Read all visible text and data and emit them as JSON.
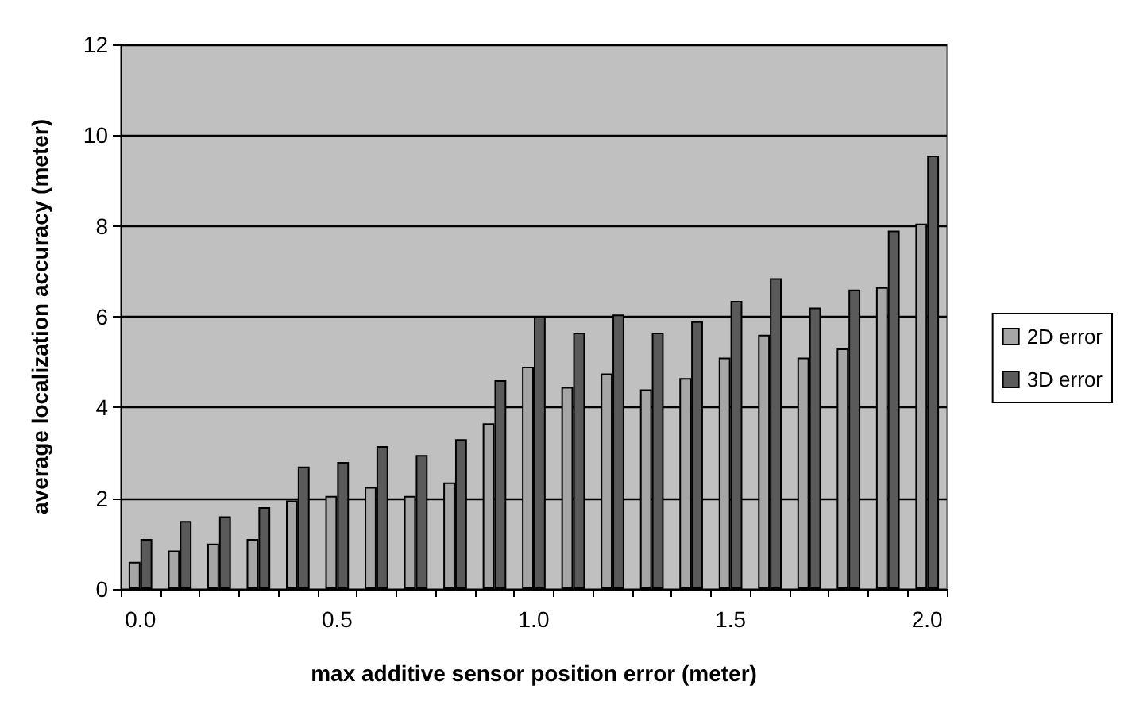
{
  "chart_data": {
    "type": "bar",
    "xlabel": "max additive sensor position error (meter)",
    "ylabel": "average localization accuracy (meter)",
    "categories": [
      "0.0",
      null,
      null,
      null,
      null,
      "0.5",
      null,
      null,
      null,
      null,
      "1.0",
      null,
      null,
      null,
      null,
      "1.5",
      null,
      null,
      null,
      null,
      "2.0"
    ],
    "series": [
      {
        "name": "2D error",
        "color": "#a6a6a6",
        "values": [
          0.6,
          0.85,
          1.0,
          1.1,
          1.95,
          2.05,
          2.25,
          2.05,
          2.35,
          3.65,
          4.9,
          4.45,
          4.75,
          4.4,
          4.65,
          5.1,
          5.6,
          5.1,
          5.3,
          6.65,
          8.05
        ]
      },
      {
        "name": "3D error",
        "color": "#5a5a5a",
        "values": [
          1.1,
          1.5,
          1.6,
          1.8,
          2.7,
          2.8,
          3.15,
          2.95,
          3.3,
          4.6,
          6.0,
          5.65,
          6.05,
          5.65,
          5.9,
          6.35,
          6.85,
          6.2,
          6.6,
          7.9,
          9.55
        ]
      }
    ],
    "ylim": [
      0,
      12
    ],
    "yticks": [
      0,
      2,
      4,
      6,
      8,
      10,
      12
    ],
    "grid": "y",
    "legend": "right"
  }
}
